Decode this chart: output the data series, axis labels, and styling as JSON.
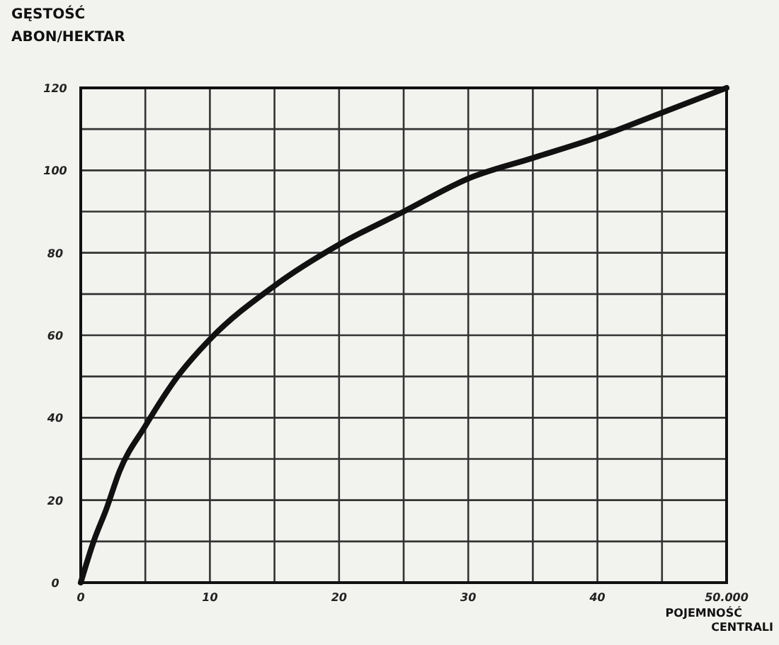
{
  "chart_data": {
    "type": "line",
    "ylabel": "GĘSTOŚĆ ABON/HEKTAR",
    "xlabel": "POJEMNOŚĆ CENTRALI",
    "x": [
      0,
      1,
      2,
      3,
      5,
      7.5,
      10,
      15,
      20,
      25,
      30,
      35,
      40,
      45,
      50
    ],
    "series": [
      {
        "color": "#111111",
        "values": [
          0,
          10,
          18,
          27,
          38,
          50,
          59,
          72,
          82,
          90,
          98,
          103,
          108,
          114,
          120
        ]
      }
    ],
    "xlim": [
      0,
      50
    ],
    "ylim": [
      0,
      120
    ],
    "xticks": [
      0,
      {
        "value": 5,
        "label": null
      },
      10,
      {
        "value": 15,
        "label": null
      },
      20,
      {
        "value": 25,
        "label": null
      },
      30,
      {
        "value": 35,
        "label": null
      },
      40,
      {
        "value": 45,
        "label": null
      },
      {
        "value": 50,
        "label": "50.000"
      }
    ],
    "yticks": [
      0,
      {
        "value": 10,
        "label": null
      },
      20,
      {
        "value": 30,
        "label": null
      },
      40,
      {
        "value": 50,
        "label": null
      },
      60,
      {
        "value": 70,
        "label": null
      },
      80,
      {
        "value": 90,
        "label": null
      },
      100,
      {
        "value": 110,
        "label": null
      },
      120
    ],
    "grid": true,
    "marker": "none",
    "line_style": "solid"
  }
}
